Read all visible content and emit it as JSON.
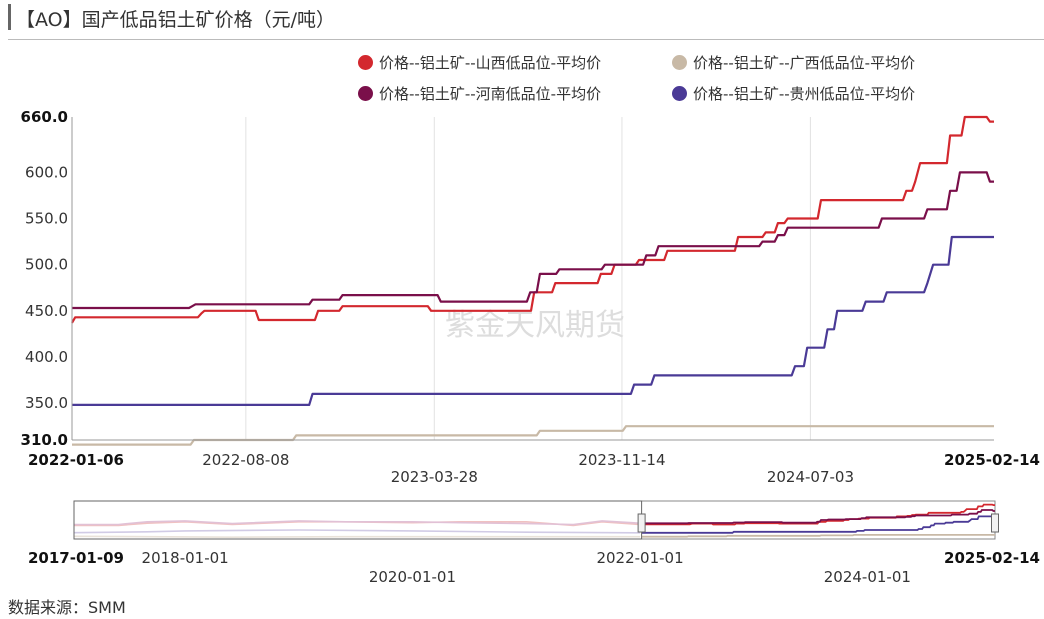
{
  "title": "【AO】国产低品铝土矿价格（元/吨）",
  "source": "数据来源：SMM",
  "watermark": "紫金天风期货",
  "colors": {
    "shanxi": "#d3282e",
    "guangxi": "#c8b9a6",
    "henan": "#7a0f4a",
    "guizhou": "#4a3a96"
  },
  "chart_data": {
    "type": "line",
    "title": "【AO】国产低品铝土矿价格（元/吨）",
    "ylim": [
      310,
      660
    ],
    "yticks": [
      "660.0",
      "600.0",
      "550.0",
      "500.0",
      "450.0",
      "400.0",
      "350.0",
      "310.0"
    ],
    "xlim": [
      "2022-01-06",
      "2025-02-14"
    ],
    "xticks": [
      "2022-01-06",
      "2022-08-08",
      "2023-03-28",
      "2023-11-14",
      "2024-07-03",
      "2025-02-14"
    ],
    "grid": "vertical",
    "legend_position": "top-right",
    "series": [
      {
        "name": "价格--铝土矿--山西低品位-平均价",
        "color": "#d3282e",
        "points": [
          [
            "2022-01-06",
            437
          ],
          [
            "2022-01-10",
            443
          ],
          [
            "2022-06-10",
            443
          ],
          [
            "2022-06-14",
            447
          ],
          [
            "2022-06-18",
            450
          ],
          [
            "2022-08-20",
            450
          ],
          [
            "2022-08-24",
            440
          ],
          [
            "2022-11-01",
            440
          ],
          [
            "2022-11-05",
            450
          ],
          [
            "2022-12-01",
            450
          ],
          [
            "2022-12-05",
            455
          ],
          [
            "2023-03-20",
            455
          ],
          [
            "2023-03-24",
            450
          ],
          [
            "2023-07-25",
            450
          ],
          [
            "2023-07-29",
            470
          ],
          [
            "2023-08-20",
            470
          ],
          [
            "2023-08-24",
            480
          ],
          [
            "2023-10-15",
            480
          ],
          [
            "2023-10-19",
            490
          ],
          [
            "2023-11-01",
            490
          ],
          [
            "2023-11-05",
            500
          ],
          [
            "2023-12-01",
            500
          ],
          [
            "2023-12-05",
            505
          ],
          [
            "2024-01-05",
            505
          ],
          [
            "2024-01-09",
            515
          ],
          [
            "2024-04-01",
            515
          ],
          [
            "2024-04-05",
            530
          ],
          [
            "2024-05-05",
            530
          ],
          [
            "2024-05-09",
            535
          ],
          [
            "2024-05-20",
            535
          ],
          [
            "2024-05-24",
            545
          ],
          [
            "2024-06-01",
            545
          ],
          [
            "2024-06-05",
            550
          ],
          [
            "2024-07-12",
            550
          ],
          [
            "2024-07-16",
            570
          ],
          [
            "2024-10-25",
            570
          ],
          [
            "2024-10-29",
            580
          ],
          [
            "2024-11-05",
            580
          ],
          [
            "2024-11-09",
            590
          ],
          [
            "2024-11-15",
            610
          ],
          [
            "2024-12-18",
            610
          ],
          [
            "2024-12-22",
            640
          ],
          [
            "2025-01-05",
            640
          ],
          [
            "2025-01-09",
            660
          ],
          [
            "2025-02-05",
            660
          ],
          [
            "2025-02-09",
            655
          ],
          [
            "2025-02-14",
            655
          ]
        ]
      },
      {
        "name": "价格--铝土矿--广西低品位-平均价",
        "color": "#c8b9a6",
        "points": [
          [
            "2022-01-06",
            305
          ],
          [
            "2022-06-01",
            305
          ],
          [
            "2022-06-05",
            310
          ],
          [
            "2022-10-05",
            310
          ],
          [
            "2022-10-09",
            315
          ],
          [
            "2023-08-01",
            315
          ],
          [
            "2023-08-05",
            320
          ],
          [
            "2023-11-15",
            320
          ],
          [
            "2023-11-19",
            325
          ],
          [
            "2025-02-14",
            325
          ]
        ]
      },
      {
        "name": "价格--铝土矿--河南低品位-平均价",
        "color": "#7a0f4a",
        "points": [
          [
            "2022-01-06",
            453
          ],
          [
            "2022-05-30",
            453
          ],
          [
            "2022-06-03",
            455
          ],
          [
            "2022-06-07",
            457
          ],
          [
            "2022-10-25",
            457
          ],
          [
            "2022-10-29",
            462
          ],
          [
            "2022-12-01",
            462
          ],
          [
            "2022-12-05",
            467
          ],
          [
            "2023-04-01",
            467
          ],
          [
            "2023-04-05",
            460
          ],
          [
            "2023-07-20",
            460
          ],
          [
            "2023-07-24",
            470
          ],
          [
            "2023-08-01",
            470
          ],
          [
            "2023-08-05",
            490
          ],
          [
            "2023-08-25",
            490
          ],
          [
            "2023-08-29",
            495
          ],
          [
            "2023-10-20",
            495
          ],
          [
            "2023-10-24",
            500
          ],
          [
            "2023-12-10",
            500
          ],
          [
            "2023-12-14",
            510
          ],
          [
            "2023-12-25",
            510
          ],
          [
            "2023-12-29",
            520
          ],
          [
            "2024-05-01",
            520
          ],
          [
            "2024-05-05",
            525
          ],
          [
            "2024-05-20",
            525
          ],
          [
            "2024-05-24",
            532
          ],
          [
            "2024-06-01",
            532
          ],
          [
            "2024-06-05",
            540
          ],
          [
            "2024-09-25",
            540
          ],
          [
            "2024-09-29",
            550
          ],
          [
            "2024-11-20",
            550
          ],
          [
            "2024-11-24",
            560
          ],
          [
            "2024-12-18",
            560
          ],
          [
            "2024-12-22",
            580
          ],
          [
            "2024-12-30",
            580
          ],
          [
            "2025-01-03",
            600
          ],
          [
            "2025-02-05",
            600
          ],
          [
            "2025-02-09",
            590
          ],
          [
            "2025-02-14",
            590
          ]
        ]
      },
      {
        "name": "价格--铝土矿--贵州低品位-平均价",
        "color": "#4a3a96",
        "points": [
          [
            "2022-01-06",
            348
          ],
          [
            "2022-10-25",
            348
          ],
          [
            "2022-10-29",
            360
          ],
          [
            "2023-11-25",
            360
          ],
          [
            "2023-11-29",
            370
          ],
          [
            "2023-12-20",
            370
          ],
          [
            "2023-12-24",
            380
          ],
          [
            "2024-06-10",
            380
          ],
          [
            "2024-06-14",
            390
          ],
          [
            "2024-06-25",
            390
          ],
          [
            "2024-06-29",
            410
          ],
          [
            "2024-07-20",
            410
          ],
          [
            "2024-07-24",
            430
          ],
          [
            "2024-08-01",
            430
          ],
          [
            "2024-08-05",
            450
          ],
          [
            "2024-09-05",
            450
          ],
          [
            "2024-09-09",
            460
          ],
          [
            "2024-10-01",
            460
          ],
          [
            "2024-10-05",
            470
          ],
          [
            "2024-11-20",
            470
          ],
          [
            "2024-11-24",
            480
          ],
          [
            "2024-12-01",
            500
          ],
          [
            "2024-12-20",
            500
          ],
          [
            "2024-12-24",
            530
          ],
          [
            "2025-02-14",
            530
          ]
        ]
      }
    ],
    "navigator": {
      "range": [
        "2017-01-09",
        "2025-02-14"
      ],
      "xticks": [
        "2017-01-09",
        "2018-01-01",
        "2020-01-01",
        "2022-01-01",
        "2024-01-01",
        "2025-02-14"
      ],
      "selected_range": [
        "2022-01-06",
        "2025-02-14"
      ]
    }
  }
}
